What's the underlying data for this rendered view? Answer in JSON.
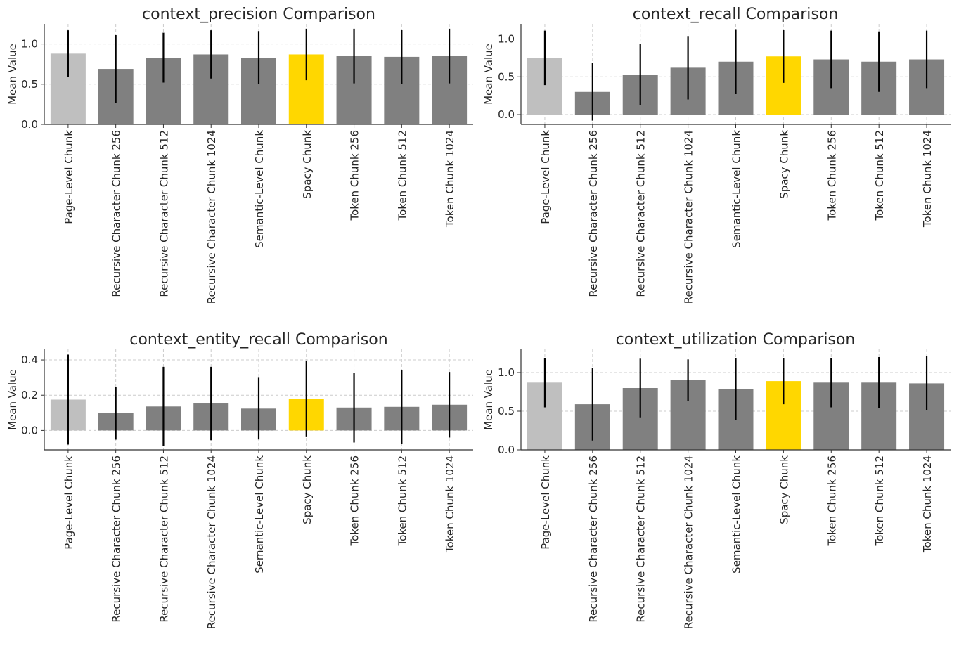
{
  "figure": {
    "layout": "2x2 grid of bar charts with error bars"
  },
  "colors": {
    "baseline": "#bfbfbf",
    "default": "#808080",
    "highlight": "#ffd700",
    "error": "#000000"
  },
  "chart_data": [
    {
      "type": "bar",
      "title": "context_precision Comparison",
      "xlabel": "",
      "ylabel": "Mean Value",
      "ylim": [
        0.0,
        1.25
      ],
      "yticks": [
        0.0,
        0.5,
        1.0
      ],
      "ytick_labels": [
        "0.0",
        "0.5",
        "1.0"
      ],
      "grid": true,
      "categories": [
        "Page-Level Chunk",
        "Recursive Character Chunk 256",
        "Recursive Character Chunk 512",
        "Recursive Character Chunk 1024",
        "Semantic-Level Chunk",
        "Spacy Chunk",
        "Token Chunk 256",
        "Token Chunk 512",
        "Token Chunk 1024"
      ],
      "values": [
        0.88,
        0.69,
        0.83,
        0.87,
        0.83,
        0.87,
        0.85,
        0.84,
        0.85
      ],
      "errors": [
        0.29,
        0.42,
        0.31,
        0.3,
        0.33,
        0.32,
        0.34,
        0.34,
        0.34
      ],
      "bar_colors": [
        "baseline",
        "default",
        "default",
        "default",
        "default",
        "highlight",
        "default",
        "default",
        "default"
      ]
    },
    {
      "type": "bar",
      "title": "context_recall Comparison",
      "xlabel": "",
      "ylabel": "Mean Value",
      "ylim": [
        -0.13,
        1.2
      ],
      "yticks": [
        0.0,
        0.5,
        1.0
      ],
      "ytick_labels": [
        "0.0",
        "0.5",
        "1.0"
      ],
      "grid": true,
      "categories": [
        "Page-Level Chunk",
        "Recursive Character Chunk 256",
        "Recursive Character Chunk 512",
        "Recursive Character Chunk 1024",
        "Semantic-Level Chunk",
        "Spacy Chunk",
        "Token Chunk 256",
        "Token Chunk 512",
        "Token Chunk 1024"
      ],
      "values": [
        0.75,
        0.3,
        0.53,
        0.62,
        0.7,
        0.77,
        0.73,
        0.7,
        0.73
      ],
      "errors": [
        0.36,
        0.38,
        0.4,
        0.42,
        0.43,
        0.35,
        0.38,
        0.4,
        0.38
      ],
      "bar_colors": [
        "baseline",
        "default",
        "default",
        "default",
        "default",
        "highlight",
        "default",
        "default",
        "default"
      ]
    },
    {
      "type": "bar",
      "title": "context_entity_recall Comparison",
      "xlabel": "",
      "ylabel": "Mean Value",
      "ylim": [
        -0.11,
        0.46
      ],
      "yticks": [
        0.0,
        0.2,
        0.4
      ],
      "ytick_labels": [
        "0.0",
        "0.2",
        "0.4"
      ],
      "grid": true,
      "categories": [
        "Page-Level Chunk",
        "Recursive Character Chunk 256",
        "Recursive Character Chunk 512",
        "Recursive Character Chunk 1024",
        "Semantic-Level Chunk",
        "Spacy Chunk",
        "Token Chunk 256",
        "Token Chunk 512",
        "Token Chunk 1024"
      ],
      "values": [
        0.175,
        0.098,
        0.136,
        0.153,
        0.124,
        0.179,
        0.13,
        0.134,
        0.146
      ],
      "errors": [
        0.255,
        0.15,
        0.225,
        0.208,
        0.175,
        0.213,
        0.198,
        0.21,
        0.186
      ],
      "bar_colors": [
        "baseline",
        "default",
        "default",
        "default",
        "default",
        "highlight",
        "default",
        "default",
        "default"
      ]
    },
    {
      "type": "bar",
      "title": "context_utilization Comparison",
      "xlabel": "",
      "ylabel": "Mean Value",
      "ylim": [
        0.0,
        1.3
      ],
      "yticks": [
        0.0,
        0.5,
        1.0
      ],
      "ytick_labels": [
        "0.0",
        "0.5",
        "1.0"
      ],
      "grid": true,
      "categories": [
        "Page-Level Chunk",
        "Recursive Character Chunk 256",
        "Recursive Character Chunk 512",
        "Recursive Character Chunk 1024",
        "Semantic-Level Chunk",
        "Spacy Chunk",
        "Token Chunk 256",
        "Token Chunk 512",
        "Token Chunk 1024"
      ],
      "values": [
        0.87,
        0.59,
        0.8,
        0.9,
        0.79,
        0.89,
        0.87,
        0.87,
        0.86
      ],
      "errors": [
        0.32,
        0.47,
        0.38,
        0.27,
        0.4,
        0.3,
        0.32,
        0.33,
        0.35
      ],
      "bar_colors": [
        "baseline",
        "default",
        "default",
        "default",
        "default",
        "highlight",
        "default",
        "default",
        "default"
      ]
    }
  ]
}
